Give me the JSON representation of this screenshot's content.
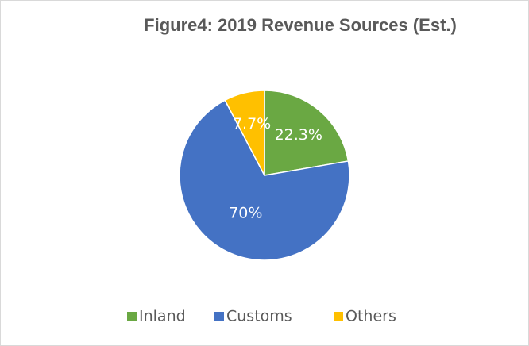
{
  "chart_data": {
    "type": "pie",
    "title": "Figure4: 2019 Revenue Sources (Est.)",
    "categories": [
      "Inland",
      "Customs",
      "Others"
    ],
    "values": [
      22.3,
      70,
      7.7
    ],
    "value_labels": [
      "22.3%",
      "70%",
      "7.7%"
    ],
    "colors": [
      "#6aa843",
      "#4472c4",
      "#ffc000"
    ],
    "legend": "bottom"
  }
}
